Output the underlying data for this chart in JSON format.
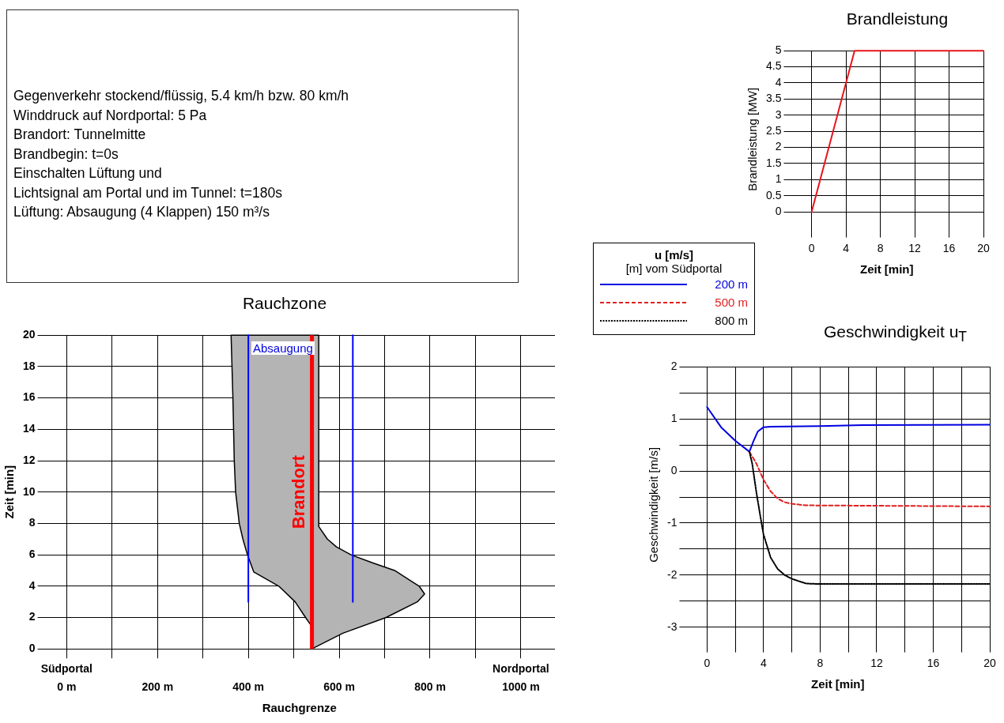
{
  "chart_data": [
    {
      "type": "other",
      "annotations": [
        "Gegenverkehr stockend/flüssig, 5.4 km/h bzw. 80 km/h",
        "Winddruck auf Nordportal: 5 Pa",
        "Brandort: Tunnelmitte",
        "Brandbegin: t=0s",
        "Einschalten Lüftung und",
        "Lichtsignal am Portal und im Tunnel: t=180s",
        "Lüftung: Absaugung (4 Klappen) 150 m³/s"
      ]
    },
    {
      "type": "area",
      "title": "Rauchzone",
      "xlabel": "Rauchgrenze",
      "ylabel": "Zeit [min]",
      "series": [
        {
          "type": "area",
          "color": "#b4b4b4",
          "x": [
            540,
            608,
            703,
            772,
            788,
            776,
            722,
            672,
            626,
            594,
            574,
            555,
            555,
            362,
            366,
            369,
            372,
            380,
            388,
            398,
            412,
            467,
            503,
            526,
            538,
            540
          ],
          "values": [
            0,
            1,
            2,
            3,
            3.5,
            4,
            5,
            5.5,
            6,
            6.5,
            7,
            7.8,
            20,
            20,
            16,
            12,
            10,
            8,
            7,
            6,
            4.9,
            4,
            3,
            2,
            1.5,
            0
          ]
        },
        {
          "type": "line",
          "color": "#0000ff",
          "x": [
            400,
            400
          ],
          "values": [
            3,
            20
          ]
        },
        {
          "type": "line",
          "color": "#0000ff",
          "x": [
            630,
            630
          ],
          "values": [
            3,
            20
          ]
        }
      ],
      "ref_lines": [
        {
          "axis": "x",
          "value": 540,
          "label": "Brandort",
          "color": "#ff0000"
        }
      ],
      "annotations": [
        "Absaugung"
      ],
      "xlim": [
        -50,
        1075
      ],
      "ylim": [
        0,
        20
      ],
      "xticks": [
        {
          "value": 0,
          "label": "Südportal\n0 m"
        },
        {
          "value": 100,
          "label": null
        },
        {
          "value": 200,
          "label": "200 m"
        },
        {
          "value": 300,
          "label": null
        },
        {
          "value": 400,
          "label": "400 m"
        },
        {
          "value": 500,
          "label": null
        },
        {
          "value": 600,
          "label": "600 m"
        },
        {
          "value": 700,
          "label": null
        },
        {
          "value": 800,
          "label": "800 m"
        },
        {
          "value": 900,
          "label": null
        },
        {
          "value": 1000,
          "label": "Nordportal\n1000 m"
        }
      ],
      "yticks": [
        0,
        2,
        4,
        6,
        8,
        10,
        12,
        14,
        16,
        18,
        20
      ],
      "grid": true
    },
    {
      "type": "line",
      "title": "Brandleistung",
      "xlabel": "Zeit [min]",
      "ylabel": "Brandleistung [MW]",
      "x": [
        0,
        5,
        20
      ],
      "values": [
        0,
        5,
        5
      ],
      "color": "#e8141c",
      "xlim": [
        -2.5,
        20
      ],
      "ylim": [
        -0.5,
        5
      ],
      "xticks": [
        0,
        4,
        8,
        12,
        16,
        20
      ],
      "yticks": [
        0,
        0.5,
        1,
        1.5,
        2,
        2.5,
        3,
        3.5,
        4,
        4.5,
        5
      ],
      "grid": true
    },
    {
      "type": "line",
      "title": "Geschwindigkeit u$_{T}$",
      "xlabel": "Zeit [min]",
      "ylabel": "Geschwindigkeit [m/s]",
      "legend_title": "u [m/s]\n[m] vom Südportal",
      "legend": "top left",
      "series": [
        {
          "name": "200 m",
          "color": "#0000e0",
          "line_style": "solid",
          "x": [
            0,
            1,
            2,
            3,
            3.3,
            3.6,
            4,
            4.5,
            8,
            11,
            20
          ],
          "values": [
            1.23,
            0.84,
            0.58,
            0.37,
            0.58,
            0.76,
            0.84,
            0.85,
            0.86,
            0.88,
            0.89
          ]
        },
        {
          "name": "500 m",
          "color": "#e02020",
          "line_style": "dashed",
          "x": [
            3,
            3.5,
            4,
            4.5,
            5,
            5.5,
            6,
            7,
            20
          ],
          "values": [
            0.37,
            0.14,
            -0.17,
            -0.39,
            -0.53,
            -0.6,
            -0.63,
            -0.66,
            -0.68
          ]
        },
        {
          "name": "800 m",
          "color": "#000000",
          "line_style": "dotted",
          "x": [
            3,
            3.2,
            3.5,
            3.8,
            4,
            4.5,
            5,
            5.5,
            6,
            7,
            8,
            20
          ],
          "values": [
            0.37,
            0.14,
            -0.42,
            -0.91,
            -1.22,
            -1.66,
            -1.88,
            -2.0,
            -2.07,
            -2.16,
            -2.17,
            -2.17
          ]
        }
      ],
      "xlim": [
        -1.5,
        20
      ],
      "ylim": [
        -3.3,
        2
      ],
      "xticks": [
        0,
        {
          "value": 2,
          "label": null
        },
        4,
        {
          "value": 6,
          "label": null
        },
        8,
        {
          "value": 10,
          "label": null
        },
        12,
        {
          "value": 14,
          "label": null
        },
        16,
        {
          "value": 18,
          "label": null
        },
        20
      ],
      "yticks": [
        -3,
        {
          "value": -2.5,
          "label": null
        },
        -2,
        {
          "value": -1.5,
          "label": null
        },
        -1,
        {
          "value": -0.5,
          "label": null
        },
        0,
        {
          "value": 0.5,
          "label": null
        },
        1,
        {
          "value": 1.5,
          "label": null
        },
        2
      ],
      "grid": true
    }
  ]
}
